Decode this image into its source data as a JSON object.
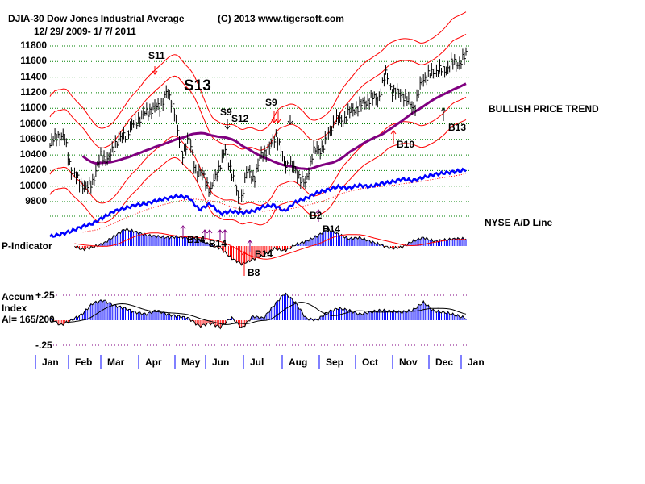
{
  "header": {
    "title": "DJIA-30  Dow Jones Industrial Average",
    "copyright": "(C) 2013 www.tigersoft.com",
    "date_range": "12/ 29/ 2009- 1/ 7/ 2011"
  },
  "chart_data": {
    "type": "line",
    "title": "DJIA-30 Dow Jones Industrial Average",
    "price_axis": {
      "ticks": [
        "11800",
        "11600",
        "11400",
        "11200",
        "11000",
        "10800",
        "10600",
        "10400",
        "10200",
        "10000",
        "9800"
      ],
      "ylim": [
        9600,
        11800
      ],
      "grid": true
    },
    "months": [
      "Jan",
      "Feb",
      "Mar",
      "Apr",
      "May",
      "Jun",
      "Jul",
      "Aug",
      "Sep",
      "Oct",
      "Nov",
      "Dec",
      "Jan"
    ],
    "price_weekly_close": [
      10520,
      10663,
      10610,
      10172,
      10067,
      9960,
      10099,
      10402,
      10325,
      10566,
      10624,
      10742,
      10850,
      10927,
      10997,
      11018,
      11204,
      11008,
      10380,
      10620,
      10193,
      10137,
      9931,
      10211,
      10450,
      10144,
      9750,
      10198,
      10097,
      10424,
      10466,
      10674,
      10303,
      10271,
      10150,
      10009,
      10448,
      10462,
      10607,
      10860,
      10830,
      10948,
      11006,
      11062,
      11132,
      11118,
      11444,
      11192,
      11204,
      11092,
      11006,
      11382,
      11428,
      11492,
      11478,
      11573,
      11577,
      11674
    ],
    "ad_line": [
      5,
      8,
      12,
      18,
      22,
      30,
      38,
      42,
      46,
      48,
      52,
      55,
      58,
      56,
      40,
      48,
      35,
      38,
      36,
      38,
      44,
      46,
      38,
      50,
      55,
      62,
      66,
      70,
      68,
      72,
      70,
      74,
      76,
      80,
      78,
      82,
      86,
      88,
      90,
      92
    ],
    "p_indicator": [
      10,
      15,
      5,
      -15,
      -5,
      10,
      40,
      70,
      60,
      45,
      40,
      35,
      38,
      35,
      25,
      5,
      -10,
      -50,
      -75,
      -55,
      -40,
      -10,
      -20,
      5,
      20,
      40,
      70,
      50,
      30,
      35,
      20,
      5,
      -10,
      -5,
      20,
      35,
      20,
      25,
      30,
      30
    ],
    "accum_index": [
      0.02,
      -0.05,
      0.0,
      0.06,
      0.17,
      0.2,
      0.15,
      0.12,
      0.08,
      0.06,
      0.1,
      0.06,
      0.04,
      0.02,
      -0.06,
      -0.03,
      -0.07,
      0.03,
      -0.08,
      0.04,
      0.02,
      0.15,
      0.27,
      0.18,
      0.02,
      0.0,
      0.08,
      0.12,
      0.1,
      0.06,
      0.08,
      0.1,
      0.09,
      0.08,
      0.1,
      0.18,
      0.09,
      0.08,
      0.05,
      0.02
    ],
    "accum_axis": {
      "ticks": [
        "+.25",
        "-.25"
      ],
      "ylim": [
        -0.25,
        0.25
      ]
    },
    "signals": [
      {
        "label": "S11",
        "color": "#ff0000"
      },
      {
        "label": "S13",
        "color": "#000000"
      },
      {
        "label": "S9",
        "color": "#000000"
      },
      {
        "label": "S12",
        "color": "#000000"
      },
      {
        "label": "S9",
        "color": "#ff0000"
      },
      {
        "label": "B10",
        "color": "#ff0000"
      },
      {
        "label": "B13",
        "color": "#000000"
      },
      {
        "label": "B2",
        "color": "#800080"
      },
      {
        "label": "B14",
        "color": "#800080"
      },
      {
        "label": "B14",
        "color": "#800080"
      },
      {
        "label": "B14",
        "color": "#800080"
      },
      {
        "label": "B14",
        "color": "#800080"
      },
      {
        "label": "B8",
        "color": "#ff0000"
      }
    ]
  },
  "labels": {
    "trend": "BULLISH PRICE TREND",
    "ad": "NYSE A/D Line",
    "pind": "P-Indicator",
    "accum1": "Accum",
    "accum2": "Index",
    "ai": "AI= 165/200"
  },
  "colors": {
    "price": "#000000",
    "band": "#ff0000",
    "ma": "#800080",
    "ad": "#0000ff",
    "grid": "#008000",
    "pos": "#0000ff",
    "neg": "#ff0000"
  }
}
